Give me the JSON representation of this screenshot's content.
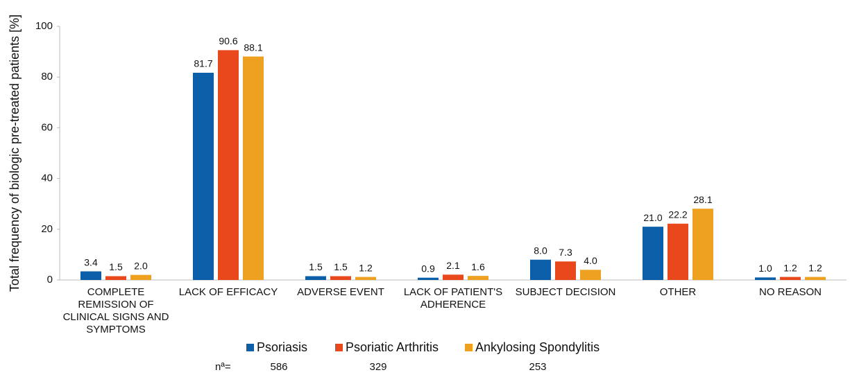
{
  "chart_data": {
    "type": "bar",
    "ylabel": "Total frequency of biologic pre-treated patients [%]",
    "categories": [
      "COMPLETE REMISSION OF CLINICAL SIGNS AND SYMPTOMS",
      "LACK OF EFFICACY",
      "ADVERSE EVENT",
      "LACK OF PATIENT'S ADHERENCE",
      "SUBJECT DECISION",
      "OTHER",
      "NO REASON"
    ],
    "series": [
      {
        "name": "Psoriasis",
        "color": "#0b5ea8",
        "values": [
          3.4,
          81.7,
          1.5,
          0.9,
          8.0,
          21.0,
          1.0
        ],
        "value_labels": [
          "3.4",
          "81.7",
          "1.5",
          "0.9",
          "8.0",
          "21.0",
          "1.0"
        ]
      },
      {
        "name": "Psoriatic Arthritis",
        "color": "#e8481c",
        "values": [
          1.5,
          90.6,
          1.5,
          2.1,
          7.3,
          22.2,
          1.2
        ],
        "value_labels": [
          "1.5",
          "90.6",
          "1.5",
          "2.1",
          "7.3",
          "22.2",
          "1.2"
        ]
      },
      {
        "name": "Ankylosing Spondylitis",
        "color": "#eea020",
        "values": [
          2.0,
          88.1,
          1.2,
          1.6,
          4.0,
          28.1,
          1.2
        ],
        "value_labels": [
          "2.0",
          "88.1",
          "1.2",
          "1.6",
          "4.0",
          "28.1",
          "1.2"
        ]
      }
    ],
    "ylim": [
      0,
      100
    ],
    "yticks": [
      0,
      20,
      40,
      60,
      80,
      100
    ],
    "grid": false,
    "legend": "bottom",
    "n_label": "nª=",
    "n_values": [
      586,
      329,
      253
    ]
  }
}
